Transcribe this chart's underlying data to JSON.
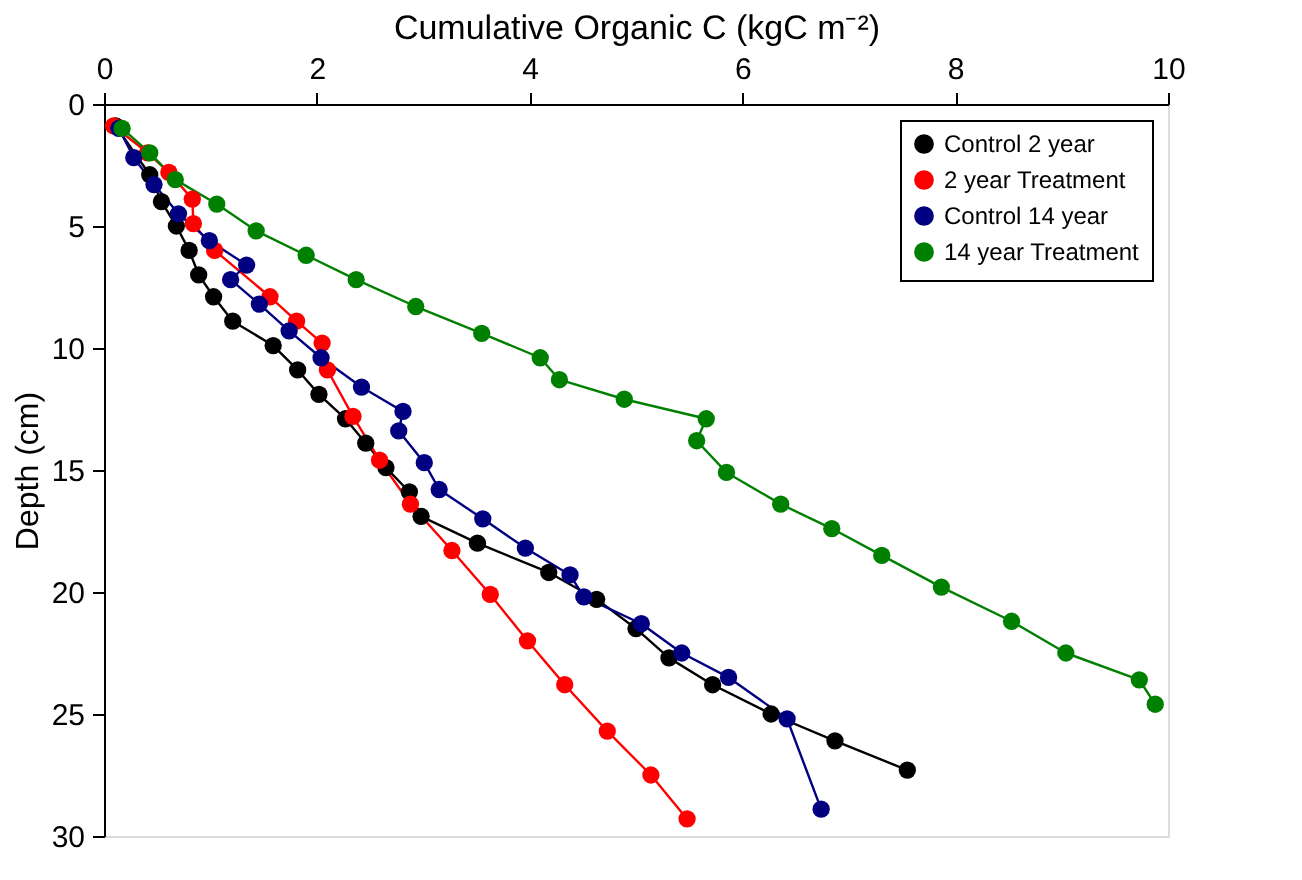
{
  "chart_data": {
    "type": "line",
    "xlabel": "Cumulative Organic C (kgC m⁻²)",
    "ylabel": "Depth (cm)",
    "xlim": [
      0,
      10
    ],
    "xticks": [
      0,
      2,
      4,
      6,
      8,
      10
    ],
    "ylim": [
      30,
      0
    ],
    "yticks": [
      0,
      5,
      10,
      15,
      20,
      25,
      30
    ],
    "grid": false,
    "legend": "top right",
    "marker": "circle",
    "line_style": "solid",
    "series": [
      {
        "name": "Control 2 year",
        "color": "#000000",
        "x": [
          0.11,
          0.43,
          0.54,
          0.68,
          0.8,
          0.89,
          1.03,
          1.21,
          1.59,
          1.82,
          2.02,
          2.27,
          2.46,
          2.65,
          2.87,
          2.98,
          3.51,
          4.18,
          4.63,
          5.0,
          5.31,
          5.72,
          6.27,
          6.87,
          7.55
        ],
        "values": [
          0.9,
          2.9,
          4.0,
          5.0,
          6.0,
          7.0,
          7.9,
          8.9,
          9.9,
          10.9,
          11.9,
          12.9,
          13.9,
          14.9,
          15.9,
          16.9,
          18.0,
          19.2,
          20.3,
          21.5,
          22.7,
          23.8,
          25.0,
          26.1,
          27.3
        ]
      },
      {
        "name": "2 year Treatment",
        "color": "#ff0000",
        "x": [
          0.09,
          0.41,
          0.61,
          0.83,
          0.84,
          1.04,
          1.56,
          1.81,
          2.05,
          2.1,
          2.34,
          2.59,
          2.88,
          3.27,
          3.63,
          3.98,
          4.33,
          4.73,
          5.14,
          5.48
        ],
        "values": [
          0.9,
          2.0,
          2.8,
          3.9,
          4.9,
          6.0,
          7.9,
          8.9,
          9.8,
          10.9,
          12.8,
          14.6,
          16.4,
          18.3,
          20.1,
          22.0,
          23.8,
          25.7,
          27.5,
          29.3
        ]
      },
      {
        "name": "Control 14 year",
        "color": "#000080",
        "x": [
          0.14,
          0.28,
          0.47,
          0.7,
          0.99,
          1.34,
          1.19,
          1.46,
          1.74,
          2.04,
          2.42,
          2.81,
          2.77,
          3.01,
          3.15,
          3.56,
          3.96,
          4.38,
          4.51,
          5.05,
          5.43,
          5.87,
          6.42,
          6.74
        ],
        "values": [
          1.0,
          2.2,
          3.3,
          4.5,
          5.6,
          6.6,
          7.2,
          8.2,
          9.3,
          10.4,
          11.6,
          12.6,
          13.4,
          14.7,
          15.8,
          17.0,
          18.2,
          19.3,
          20.2,
          21.3,
          22.5,
          23.5,
          25.2,
          28.9
        ]
      },
      {
        "name": "14 year Treatment",
        "color": "#008000",
        "x": [
          0.17,
          0.43,
          0.67,
          1.06,
          1.43,
          1.9,
          2.37,
          2.93,
          3.55,
          4.1,
          4.28,
          4.89,
          5.66,
          5.57,
          5.85,
          6.36,
          6.84,
          7.31,
          7.87,
          8.53,
          9.04,
          9.73,
          9.88
        ],
        "values": [
          1.0,
          2.0,
          3.1,
          4.1,
          5.2,
          6.2,
          7.2,
          8.3,
          9.4,
          10.4,
          11.3,
          12.1,
          12.9,
          13.8,
          15.1,
          16.4,
          17.4,
          18.5,
          19.8,
          21.2,
          22.5,
          23.6,
          24.6
        ]
      }
    ]
  }
}
